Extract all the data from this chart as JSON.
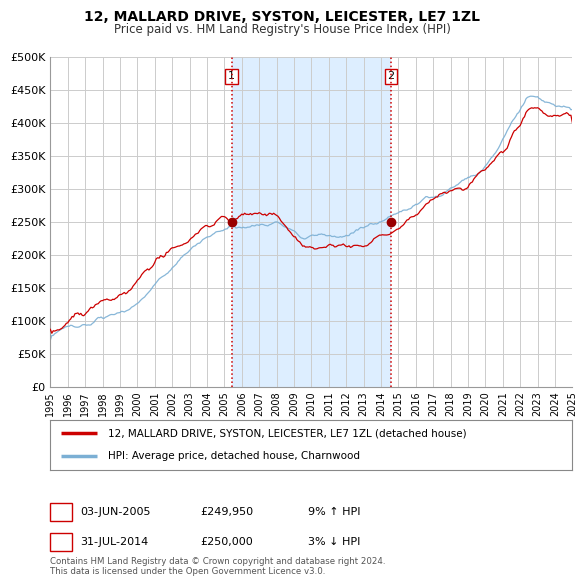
{
  "title": "12, MALLARD DRIVE, SYSTON, LEICESTER, LE7 1ZL",
  "subtitle": "Price paid vs. HM Land Registry's House Price Index (HPI)",
  "ylim": [
    0,
    500000
  ],
  "yticks": [
    0,
    50000,
    100000,
    150000,
    200000,
    250000,
    300000,
    350000,
    400000,
    450000,
    500000
  ],
  "ytick_labels": [
    "£0",
    "£50K",
    "£100K",
    "£150K",
    "£200K",
    "£250K",
    "£300K",
    "£350K",
    "£400K",
    "£450K",
    "£500K"
  ],
  "background_color": "#ffffff",
  "plot_bg_color": "#ffffff",
  "grid_color": "#cccccc",
  "line1_color": "#cc0000",
  "line2_color": "#7bafd4",
  "shade_color": "#ddeeff",
  "vline_color": "#cc0000",
  "marker1_color": "#990000",
  "marker2_color": "#990000",
  "sale1_year_f": 2005.42,
  "sale1_price": 249950,
  "sale2_year_f": 2014.58,
  "sale2_price": 250000,
  "legend1_label": "12, MALLARD DRIVE, SYSTON, LEICESTER, LE7 1ZL (detached house)",
  "legend2_label": "HPI: Average price, detached house, Charnwood",
  "footer": "Contains HM Land Registry data © Crown copyright and database right 2024.\nThis data is licensed under the Open Government Licence v3.0.",
  "xmin": 1995,
  "xmax": 2025,
  "title_fontsize": 10,
  "subtitle_fontsize": 9
}
